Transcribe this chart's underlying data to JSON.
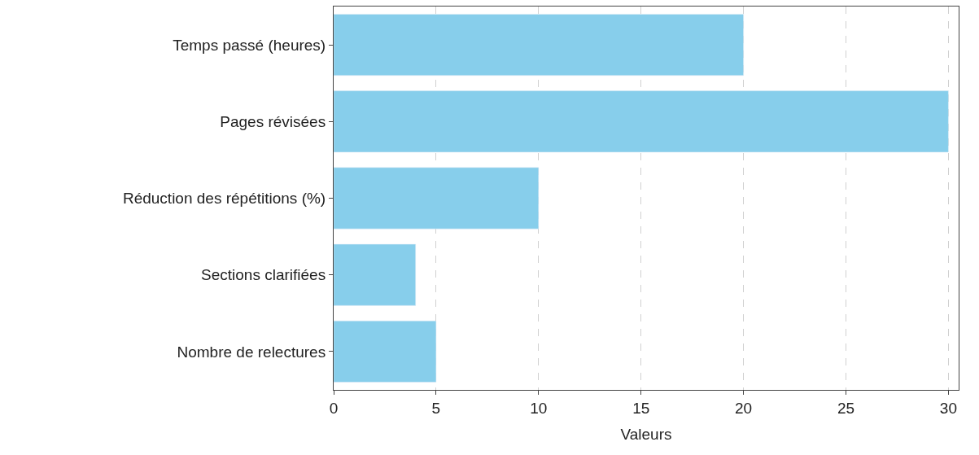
{
  "chart_data": {
    "type": "bar",
    "orientation": "horizontal",
    "categories": [
      "Temps passé (heures)",
      "Pages révisées",
      "Réduction des répétitions (%)",
      "Sections clarifiées",
      "Nombre de relectures"
    ],
    "values": [
      20,
      30,
      10,
      4,
      5
    ],
    "color": "#87ceeb",
    "xlabel": "Valeurs",
    "xlim": [
      0,
      30.5
    ],
    "xticks": [
      0,
      5,
      10,
      15,
      20,
      25,
      30
    ],
    "grid": "x"
  }
}
